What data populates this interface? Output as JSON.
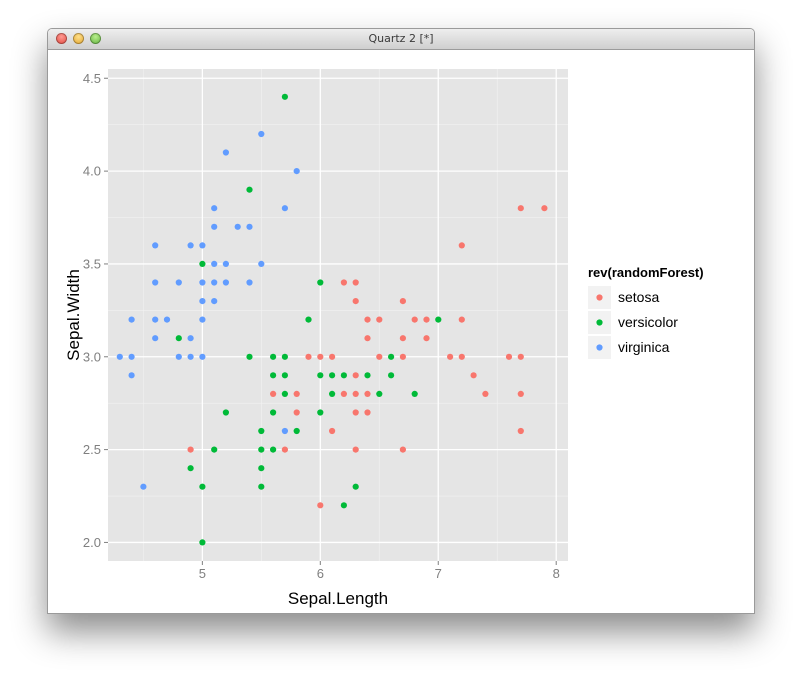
{
  "window": {
    "title": "Quartz 2 [*]"
  },
  "chart_data": {
    "type": "scatter",
    "xlabel": "Sepal.Length",
    "ylabel": "Sepal.Width",
    "xlim": [
      4.2,
      8.1
    ],
    "ylim": [
      1.9,
      4.55
    ],
    "x_ticks": [
      5,
      6,
      7,
      8
    ],
    "y_ticks": [
      2.0,
      2.5,
      3.0,
      3.5,
      4.0,
      4.5
    ],
    "x_tick_labels": [
      "5",
      "6",
      "7",
      "8"
    ],
    "y_tick_labels": [
      "2.0",
      "2.5",
      "3.0",
      "3.5",
      "4.0",
      "4.5"
    ],
    "grid": true,
    "legend": {
      "title": "rev(randomForest)",
      "position": "right",
      "entries": [
        {
          "name": "setosa",
          "color": "#F8766D"
        },
        {
          "name": "versicolor",
          "color": "#00BA38"
        },
        {
          "name": "virginica",
          "color": "#619CFF"
        }
      ]
    },
    "series": [
      {
        "name": "setosa",
        "color": "#F8766D",
        "points": [
          [
            4.9,
            2.5
          ],
          [
            5.6,
            2.8
          ],
          [
            5.7,
            2.5
          ],
          [
            5.8,
            2.8
          ],
          [
            5.8,
            2.7
          ],
          [
            5.9,
            3.0
          ],
          [
            6.0,
            3.0
          ],
          [
            6.0,
            2.2
          ],
          [
            6.1,
            3.0
          ],
          [
            6.1,
            2.6
          ],
          [
            6.2,
            3.4
          ],
          [
            6.2,
            2.8
          ],
          [
            6.3,
            3.4
          ],
          [
            6.3,
            3.3
          ],
          [
            6.3,
            2.9
          ],
          [
            6.3,
            2.8
          ],
          [
            6.3,
            2.7
          ],
          [
            6.3,
            2.5
          ],
          [
            6.4,
            3.2
          ],
          [
            6.4,
            3.1
          ],
          [
            6.4,
            2.8
          ],
          [
            6.4,
            2.7
          ],
          [
            6.5,
            3.2
          ],
          [
            6.5,
            3.0
          ],
          [
            6.7,
            3.3
          ],
          [
            6.7,
            3.1
          ],
          [
            6.7,
            3.0
          ],
          [
            6.7,
            2.5
          ],
          [
            6.8,
            3.2
          ],
          [
            6.9,
            3.2
          ],
          [
            6.9,
            3.1
          ],
          [
            7.1,
            3.0
          ],
          [
            7.2,
            3.6
          ],
          [
            7.2,
            3.2
          ],
          [
            7.2,
            3.0
          ],
          [
            7.3,
            2.9
          ],
          [
            7.4,
            2.8
          ],
          [
            7.6,
            3.0
          ],
          [
            7.7,
            3.8
          ],
          [
            7.7,
            3.0
          ],
          [
            7.7,
            2.8
          ],
          [
            7.7,
            2.6
          ],
          [
            7.9,
            3.8
          ]
        ]
      },
      {
        "name": "versicolor",
        "color": "#00BA38",
        "points": [
          [
            4.8,
            3.1
          ],
          [
            4.9,
            2.4
          ],
          [
            5.0,
            3.5
          ],
          [
            5.0,
            2.3
          ],
          [
            5.0,
            2.0
          ],
          [
            5.1,
            2.5
          ],
          [
            5.2,
            2.7
          ],
          [
            5.4,
            3.9
          ],
          [
            5.4,
            3.0
          ],
          [
            5.5,
            2.6
          ],
          [
            5.5,
            2.5
          ],
          [
            5.5,
            2.4
          ],
          [
            5.5,
            2.3
          ],
          [
            5.6,
            3.0
          ],
          [
            5.6,
            2.9
          ],
          [
            5.6,
            2.7
          ],
          [
            5.6,
            2.5
          ],
          [
            5.7,
            4.4
          ],
          [
            5.7,
            3.0
          ],
          [
            5.7,
            2.9
          ],
          [
            5.7,
            2.8
          ],
          [
            5.8,
            2.6
          ],
          [
            5.9,
            3.2
          ],
          [
            6.0,
            3.4
          ],
          [
            6.0,
            2.9
          ],
          [
            6.0,
            2.7
          ],
          [
            6.1,
            2.9
          ],
          [
            6.1,
            2.8
          ],
          [
            6.2,
            2.9
          ],
          [
            6.2,
            2.2
          ],
          [
            6.3,
            2.3
          ],
          [
            6.4,
            2.9
          ],
          [
            6.5,
            2.8
          ],
          [
            6.6,
            3.0
          ],
          [
            6.6,
            2.9
          ],
          [
            6.8,
            2.8
          ],
          [
            7.0,
            3.2
          ]
        ]
      },
      {
        "name": "virginica",
        "color": "#619CFF",
        "points": [
          [
            4.3,
            3.0
          ],
          [
            4.4,
            3.2
          ],
          [
            4.4,
            3.0
          ],
          [
            4.4,
            2.9
          ],
          [
            4.5,
            2.3
          ],
          [
            4.6,
            3.6
          ],
          [
            4.6,
            3.4
          ],
          [
            4.6,
            3.2
          ],
          [
            4.6,
            3.1
          ],
          [
            4.7,
            3.2
          ],
          [
            4.8,
            3.4
          ],
          [
            4.8,
            3.0
          ],
          [
            4.9,
            3.6
          ],
          [
            4.9,
            3.1
          ],
          [
            4.9,
            3.0
          ],
          [
            5.0,
            3.6
          ],
          [
            5.0,
            3.4
          ],
          [
            5.0,
            3.3
          ],
          [
            5.0,
            3.2
          ],
          [
            5.0,
            3.0
          ],
          [
            5.1,
            3.8
          ],
          [
            5.1,
            3.7
          ],
          [
            5.1,
            3.5
          ],
          [
            5.1,
            3.4
          ],
          [
            5.1,
            3.3
          ],
          [
            5.2,
            4.1
          ],
          [
            5.2,
            3.5
          ],
          [
            5.2,
            3.4
          ],
          [
            5.3,
            3.7
          ],
          [
            5.4,
            3.7
          ],
          [
            5.4,
            3.4
          ],
          [
            5.5,
            4.2
          ],
          [
            5.5,
            3.5
          ],
          [
            5.7,
            3.8
          ],
          [
            5.7,
            2.6
          ],
          [
            5.8,
            4.0
          ]
        ]
      }
    ]
  }
}
